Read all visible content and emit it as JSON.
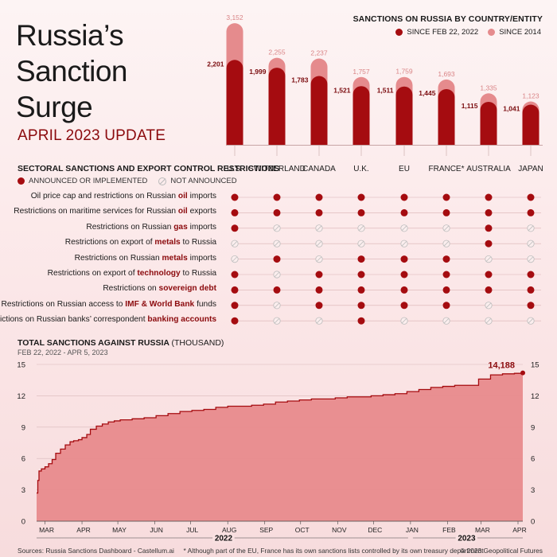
{
  "title": {
    "lines": [
      "Russia’s",
      "Sanction",
      "Surge"
    ],
    "subtitle": "APRIL 2023 UPDATE"
  },
  "bars_chart": {
    "title": "SANCTIONS ON RUSSIA BY COUNTRY/ENTITY",
    "legend": [
      "SINCE FEB 22, 2022",
      "SINCE 2014"
    ],
    "colors": {
      "since_2022": "#a50c10",
      "since_2014": "#e58b8d"
    }
  },
  "chart_data": [
    {
      "type": "bar",
      "title": "SANCTIONS ON RUSSIA BY COUNTRY/ENTITY",
      "categories": [
        "U.S.",
        "SWITZERLAND",
        "CANADA",
        "U.K.",
        "EU",
        "FRANCE*",
        "AUSTRALIA",
        "JAPAN"
      ],
      "series": [
        {
          "name": "SINCE FEB 22, 2022",
          "values": [
            2201,
            1999,
            1783,
            1521,
            1511,
            1445,
            1115,
            1041
          ]
        },
        {
          "name": "SINCE 2014",
          "values": [
            3152,
            2255,
            2237,
            1757,
            1759,
            1693,
            1335,
            1123
          ]
        }
      ],
      "value_labels_2022": [
        "2,201",
        "1,999",
        "1,783",
        "1,521",
        "1,511",
        "1,445",
        "1,115",
        "1,041"
      ],
      "value_labels_2014": [
        "3,152",
        "2,255",
        "2,237",
        "1,757",
        "1,759",
        "1,693",
        "1,335",
        "1,123"
      ],
      "ylim": [
        0,
        3300
      ]
    },
    {
      "type": "table",
      "title": "SECTORAL SANCTIONS AND EXPORT CONTROL RESTRICTIONS",
      "legend": [
        "ANNOUNCED OR IMPLEMENTED",
        "NOT ANNOUNCED"
      ],
      "columns": [
        "U.S.",
        "SWITZERLAND",
        "CANADA",
        "U.K.",
        "EU",
        "FRANCE*",
        "AUSTRALIA",
        "JAPAN"
      ],
      "rows": [
        {
          "pre": "Oil price cap and restrictions on Russian ",
          "hl": "oil",
          "post": " imports",
          "values": [
            1,
            1,
            1,
            1,
            1,
            1,
            1,
            1
          ]
        },
        {
          "pre": "Restrictions on maritime services for Russian ",
          "hl": "oil",
          "post": " exports",
          "values": [
            1,
            1,
            1,
            1,
            1,
            1,
            1,
            1
          ]
        },
        {
          "pre": "Restrictions on Russian ",
          "hl": "gas",
          "post": " imports",
          "values": [
            1,
            0,
            0,
            0,
            0,
            0,
            1,
            0
          ]
        },
        {
          "pre": "Restrictions on export of ",
          "hl": "metals",
          "post": " to Russia",
          "values": [
            0,
            0,
            0,
            0,
            0,
            0,
            1,
            0
          ]
        },
        {
          "pre": "Restrictions on Russian ",
          "hl": "metals",
          "post": " imports",
          "values": [
            0,
            1,
            0,
            1,
            1,
            1,
            0,
            0
          ]
        },
        {
          "pre": "Restrictions on export of ",
          "hl": "technology",
          "post": " to Russia",
          "values": [
            1,
            0,
            1,
            1,
            1,
            1,
            1,
            1
          ]
        },
        {
          "pre": "Restrictions on ",
          "hl": "sovereign debt",
          "post": "",
          "values": [
            1,
            1,
            1,
            1,
            1,
            1,
            1,
            1
          ]
        },
        {
          "pre": "Restrictions on Russian access to ",
          "hl": "IMF & World Bank",
          "post": " funds",
          "values": [
            1,
            0,
            1,
            1,
            1,
            1,
            0,
            1
          ]
        },
        {
          "pre": "Restrictions on Russian banks’ correspondent ",
          "hl": "banking accounts",
          "post": "",
          "values": [
            1,
            0,
            0,
            1,
            0,
            0,
            0,
            0
          ]
        }
      ]
    },
    {
      "type": "area",
      "title": "TOTAL SANCTIONS AGAINST RUSSIA",
      "title_unit": "(THOUSAND)",
      "subtitle": "FEB 22, 2022 - APR 5, 2023",
      "x_ticks": [
        "MAR",
        "APR",
        "MAY",
        "JUN",
        "JUL",
        "AUG",
        "SEP",
        "OCT",
        "NOV",
        "DEC",
        "JAN",
        "FEB",
        "MAR",
        "APR"
      ],
      "year_labels": [
        "2022",
        "2023"
      ],
      "y_ticks": [
        "0",
        "3",
        "6",
        "9",
        "12",
        "15"
      ],
      "ylim": [
        0,
        15
      ],
      "x_days": [
        0,
        1,
        2,
        4,
        7,
        10,
        13,
        16,
        20,
        24,
        28,
        31,
        35,
        38,
        42,
        45,
        50,
        55,
        60,
        65,
        70,
        80,
        90,
        100,
        110,
        120,
        130,
        140,
        150,
        160,
        170,
        180,
        190,
        200,
        210,
        220,
        230,
        240,
        250,
        260,
        270,
        280,
        290,
        300,
        310,
        320,
        330,
        340,
        350,
        360,
        370,
        380,
        390,
        400,
        407
      ],
      "values": [
        2.7,
        3.9,
        4.8,
        5.0,
        5.2,
        5.5,
        5.9,
        6.5,
        6.9,
        7.3,
        7.6,
        7.7,
        7.8,
        8.0,
        8.3,
        8.8,
        9.1,
        9.3,
        9.5,
        9.6,
        9.7,
        9.8,
        9.9,
        10.1,
        10.3,
        10.5,
        10.6,
        10.7,
        10.9,
        11.0,
        11.0,
        11.1,
        11.2,
        11.4,
        11.5,
        11.6,
        11.7,
        11.7,
        11.8,
        11.9,
        11.9,
        12.0,
        12.1,
        12.2,
        12.4,
        12.6,
        12.8,
        12.9,
        13.0,
        13.0,
        13.6,
        14.0,
        14.1,
        14.15,
        14.188
      ],
      "end_label": "14,188"
    }
  ],
  "footer": {
    "sources": "Sources: Russia Sanctions Dashboard - Castellum.ai",
    "note": "* Although part of the EU, France has its own sanctions lists controlled by its own treasury department",
    "copyright": "© 2023 Geopolitical Futures"
  }
}
